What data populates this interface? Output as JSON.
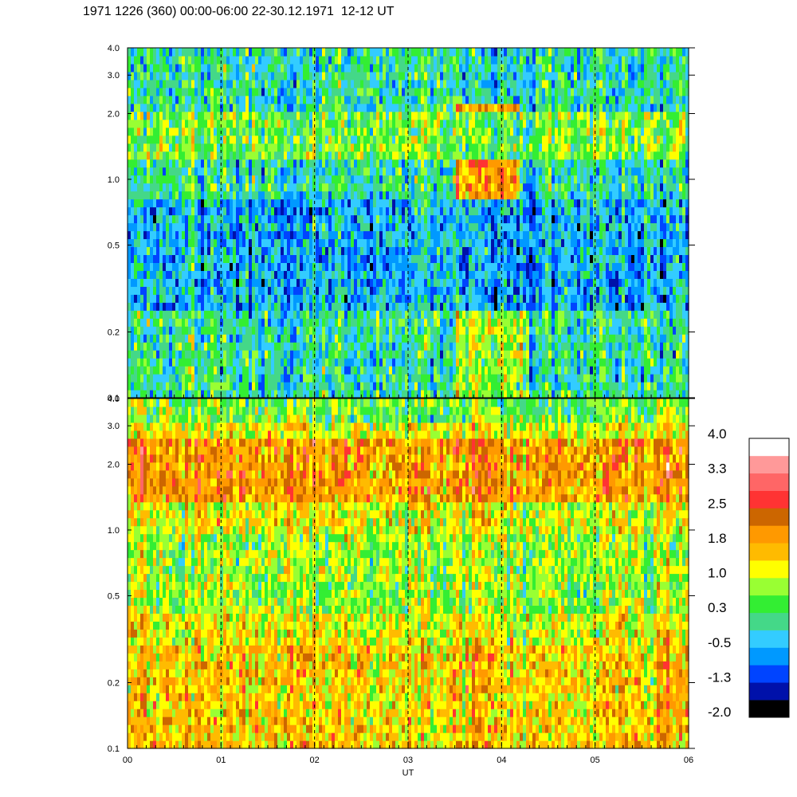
{
  "title": "1971 1226 (360) 00:00-06:00 22-30.12.1971  12-12 UT",
  "chart_data": {
    "type": "heatmap",
    "panels": [
      {
        "name": "",
        "y_scale": "log",
        "ylim": [
          0.1,
          4.0
        ],
        "y_tick_labels": [
          "4.0",
          "3.0",
          "2.0",
          "1.0",
          "0.5",
          "0.2",
          "0.1"
        ],
        "y_tick_values": [
          4.0,
          3.0,
          2.0,
          1.0,
          0.5,
          0.2,
          0.1
        ],
        "background_level": 0.0,
        "features": [
          {
            "x0": 3.5,
            "x1": 4.2,
            "y0": 0.8,
            "y1": 2.2,
            "level": 2.0
          },
          {
            "x0": 3.5,
            "x1": 4.3,
            "y0": 0.1,
            "y1": 0.8,
            "level": 1.0
          },
          {
            "x0": 0.0,
            "x1": 6.0,
            "y0": 0.25,
            "y1": 0.8,
            "level": -0.5
          },
          {
            "x0": 0.0,
            "x1": 6.0,
            "y0": 1.2,
            "y1": 2.0,
            "level": 0.6
          }
        ]
      },
      {
        "name": "",
        "y_scale": "log",
        "ylim": [
          0.1,
          4.0
        ],
        "y_tick_labels": [
          "4.0",
          "3.0",
          "2.0",
          "1.0",
          "0.5",
          "0.2",
          "0.1"
        ],
        "y_tick_values": [
          4.0,
          3.0,
          2.0,
          1.0,
          0.5,
          0.2,
          0.1
        ],
        "background_level": 1.2,
        "features": [
          {
            "x0": 0.0,
            "x1": 6.0,
            "y0": 1.4,
            "y1": 2.6,
            "level": 1.9
          },
          {
            "x0": 0.0,
            "x1": 6.0,
            "y0": 0.4,
            "y1": 1.0,
            "level": 0.8
          },
          {
            "x0": 0.0,
            "x1": 6.0,
            "y0": 0.1,
            "y1": 0.3,
            "level": 1.5
          },
          {
            "x0": 0.0,
            "x1": 6.0,
            "y0": 3.0,
            "y1": 4.0,
            "level": 0.6
          }
        ]
      }
    ],
    "x": {
      "label": "UT",
      "range": [
        0,
        6
      ],
      "tick_labels": [
        "00",
        "01",
        "02",
        "03",
        "04",
        "05",
        "06"
      ],
      "tick_values": [
        0,
        1,
        2,
        3,
        4,
        5,
        6
      ],
      "dashed_gridlines_at": [
        1,
        2,
        3,
        4,
        5
      ]
    },
    "colorbar": {
      "labels": [
        "4.0",
        "3.3",
        "2.5",
        "1.8",
        "1.0",
        "0.3",
        "-0.5",
        "-1.3",
        "-2.0"
      ],
      "range": [
        -2.0,
        4.0
      ],
      "colors_bottom_to_top": [
        "#000000",
        "#0011aa",
        "#0044ff",
        "#0099ff",
        "#33ccff",
        "#44d888",
        "#33ee33",
        "#99ff33",
        "#ffff00",
        "#ffbb00",
        "#ff9900",
        "#cc6600",
        "#ff3333",
        "#ff6666",
        "#ff9999",
        "#ffffff"
      ]
    }
  }
}
